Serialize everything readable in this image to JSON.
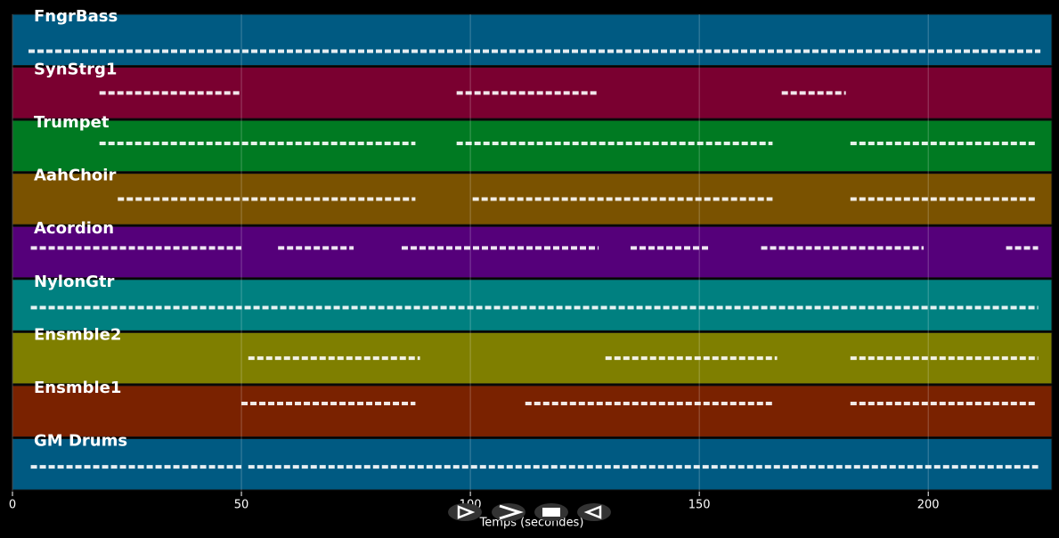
{
  "chart_data": {
    "type": "timeline",
    "x_label": "Temps (secondes)",
    "xlim": [
      0,
      227
    ],
    "xticks": [
      0,
      50,
      100,
      150,
      200
    ],
    "grid": true,
    "tracks": [
      {
        "name": "FngrBass",
        "color": "#005a82",
        "spans": [
          [
            3.5,
            224.5
          ]
        ]
      },
      {
        "name": "SynStrg1",
        "color": "#7a0030",
        "spans": [
          [
            19,
            50
          ],
          [
            97,
            128
          ],
          [
            168,
            182
          ]
        ]
      },
      {
        "name": "Trumpet",
        "color": "#007a22",
        "spans": [
          [
            19,
            88
          ],
          [
            97,
            166
          ],
          [
            183,
            223.5
          ]
        ]
      },
      {
        "name": "AahChoir",
        "color": "#7a5200",
        "spans": [
          [
            23,
            88
          ],
          [
            100.5,
            166
          ],
          [
            183,
            223.5
          ]
        ]
      },
      {
        "name": "Acordion",
        "color": "#55007a",
        "spans": [
          [
            4,
            50
          ],
          [
            58,
            74.5
          ],
          [
            85,
            128
          ],
          [
            135,
            152
          ],
          [
            163.5,
            199
          ],
          [
            217,
            224
          ]
        ]
      },
      {
        "name": "NylonGtr",
        "color": "#008080",
        "spans": [
          [
            4,
            224
          ]
        ]
      },
      {
        "name": "Ensmble2",
        "color": "#7f7f00",
        "spans": [
          [
            51.5,
            89
          ],
          [
            129.5,
            167
          ],
          [
            183,
            224
          ]
        ]
      },
      {
        "name": "Ensmble1",
        "color": "#7a2200",
        "spans": [
          [
            50,
            88
          ],
          [
            112,
            166
          ],
          [
            183,
            223.5
          ]
        ]
      },
      {
        "name": "GM Drums",
        "color": "#005a82",
        "spans": [
          [
            4,
            50
          ],
          [
            51.5,
            224
          ]
        ]
      }
    ]
  }
}
